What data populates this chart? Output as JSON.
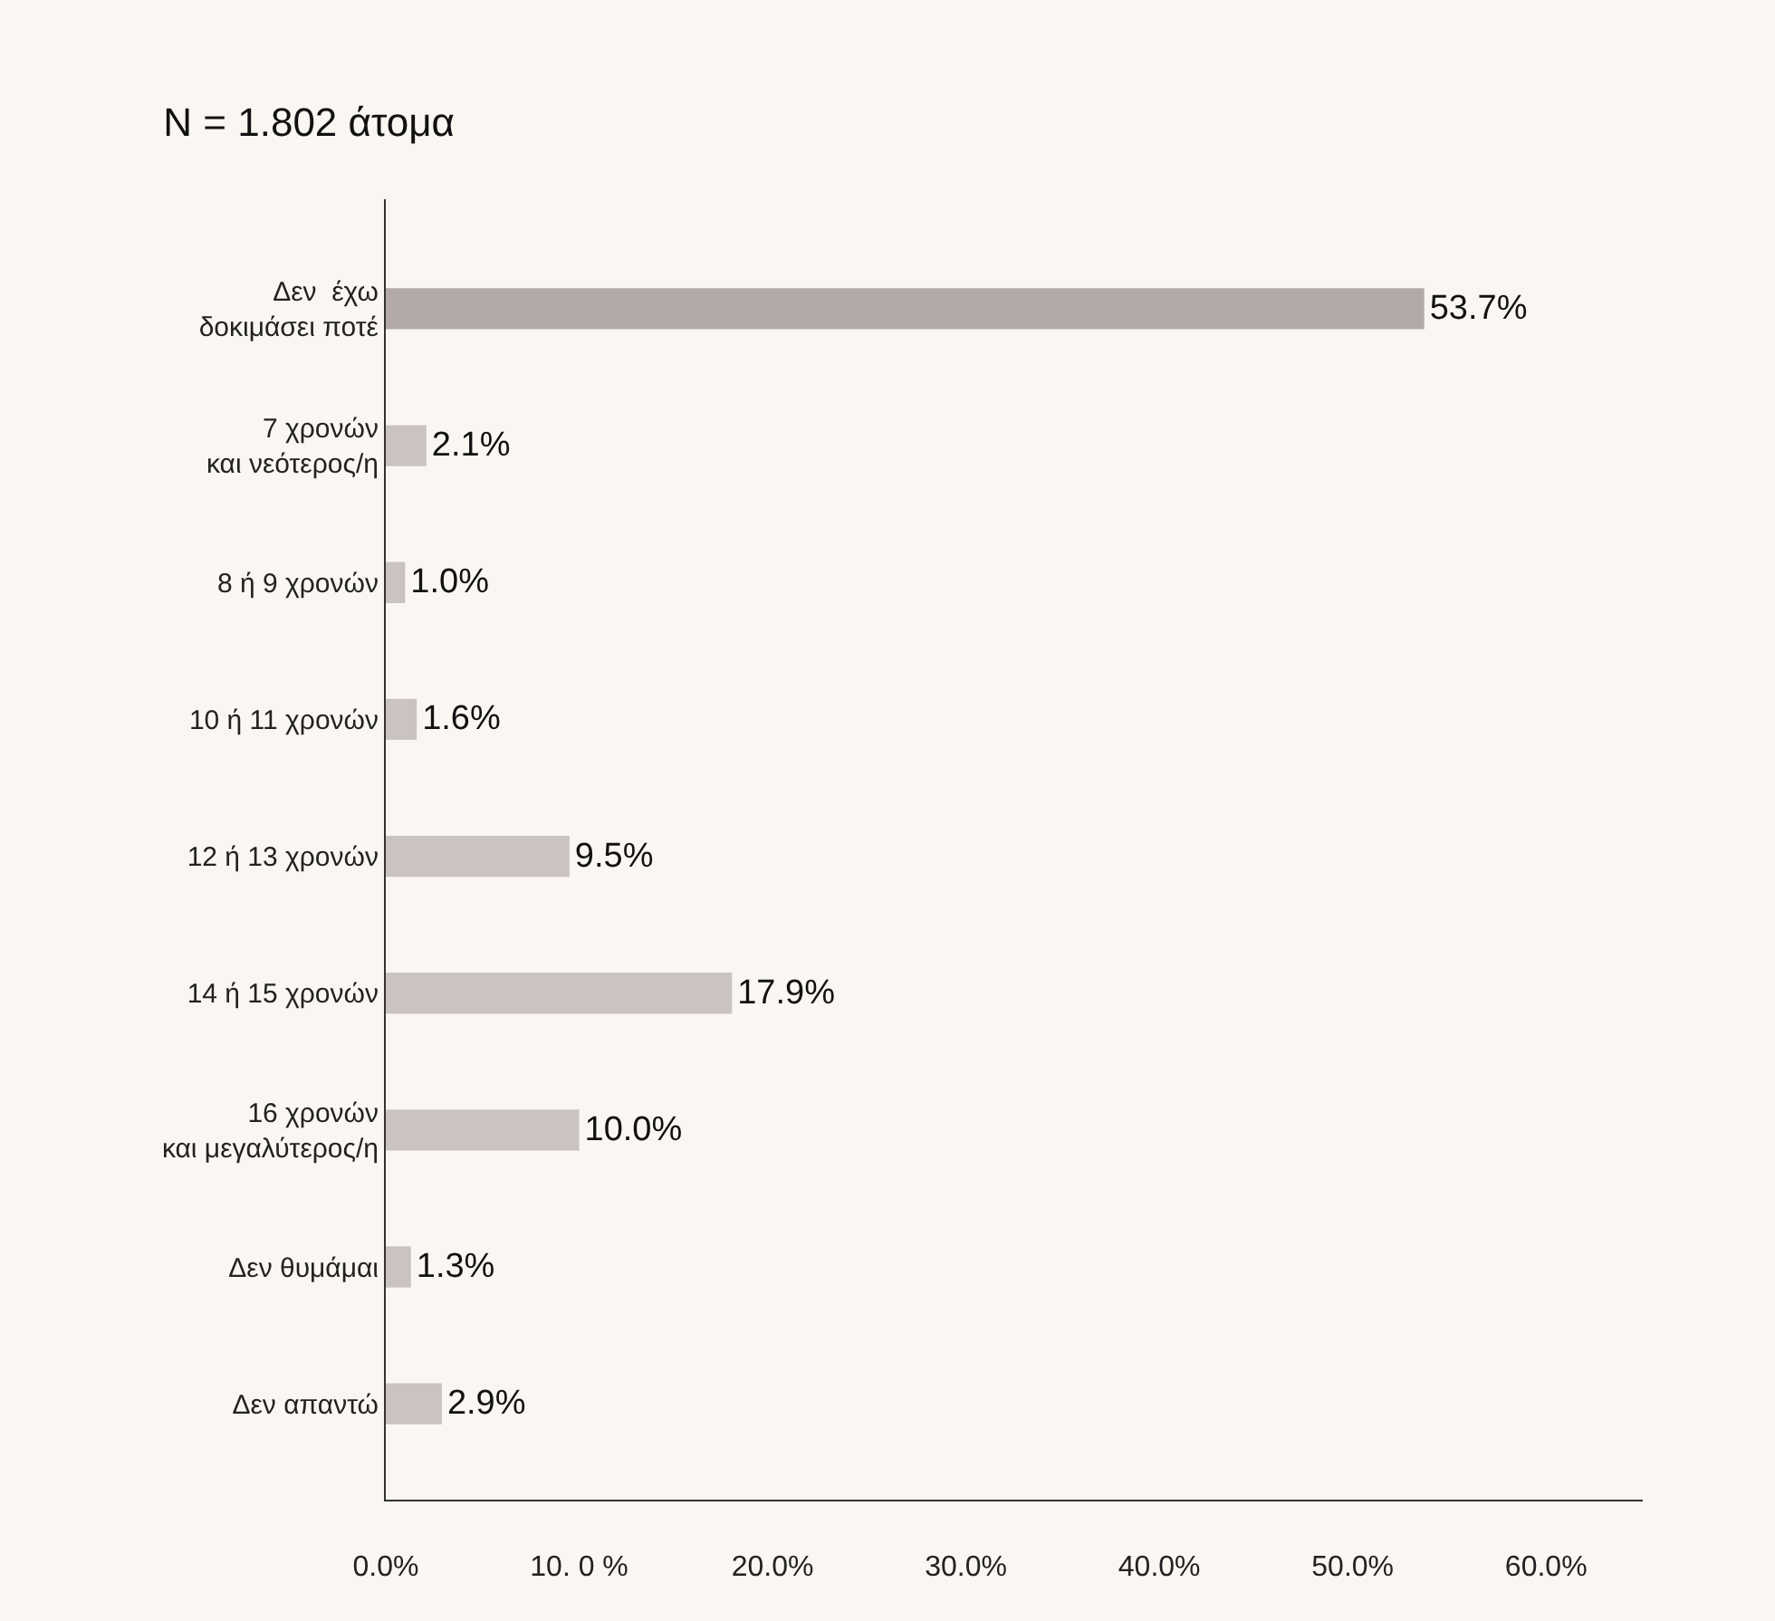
{
  "chart_data": {
    "type": "bar",
    "orientation": "horizontal",
    "title": "N = 1.802 άτομα",
    "categories": [
      "Δεν  έχω\nδοκιμάσει ποτέ",
      "7 χρονών\nκαι νεότερος/η",
      "8 ή 9 χρονών",
      "10 ή 11 χρονών",
      "12 ή 13 χρονών",
      "14 ή 15 χρονών",
      "16 χρονών\nκαι μεγαλύτερος/η",
      "Δεν θυμάμαι",
      "Δεν απαντώ"
    ],
    "values": [
      53.7,
      2.1,
      1.0,
      1.6,
      9.5,
      17.9,
      10.0,
      1.3,
      2.9
    ],
    "colors": [
      "#b3a9a6",
      "#cbc3c1",
      "#cbc3c1",
      "#cbc3c1",
      "#cbc3c1",
      "#cbc3c1",
      "#cbc3c1",
      "#cbc3c1",
      "#cbc3c1"
    ],
    "value_labels": [
      "53.7%",
      "2.1%",
      "1.0%",
      "1.6%",
      "9.5%",
      "17.9%",
      "10.0%",
      "1.3%",
      "2.9%"
    ],
    "xlim": [
      0,
      65
    ],
    "xticks": [
      {
        "value": 0,
        "label": "0.0%"
      },
      {
        "value": 10,
        "label": "10. 0 %"
      },
      {
        "value": 20,
        "label": "20.0%"
      },
      {
        "value": 30,
        "label": "30.0%"
      },
      {
        "value": 40,
        "label": "40.0%"
      },
      {
        "value": 50,
        "label": "50.0%"
      },
      {
        "value": 60,
        "label": "60.0%"
      }
    ],
    "grid": false,
    "legend": false
  }
}
